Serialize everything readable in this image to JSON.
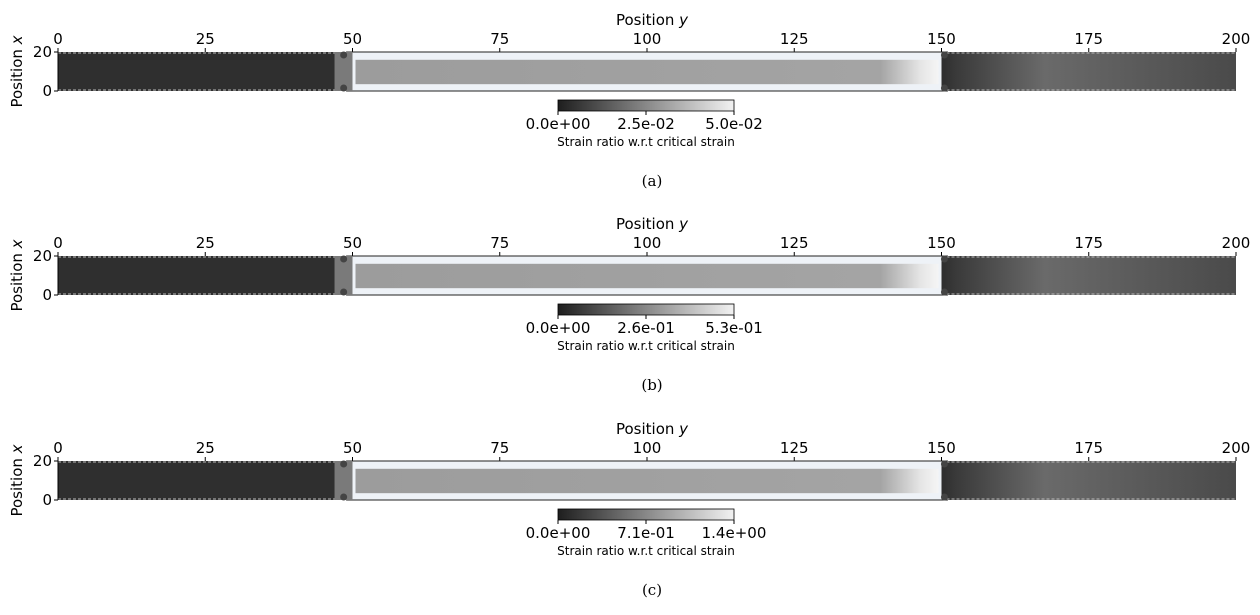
{
  "chart_data": [
    {
      "type": "heatmap",
      "xlabel": "Position y",
      "ylabel": "Position x",
      "xlim": [
        0,
        200
      ],
      "ylim": [
        0,
        20
      ],
      "xticks": [
        "0",
        "25",
        "50",
        "75",
        "100",
        "125",
        "150",
        "175",
        "200"
      ],
      "yticks": [
        "0",
        "20"
      ],
      "regions": [
        {
          "from": 0,
          "to": 47,
          "level": 0.02
        },
        {
          "from": 47,
          "to": 50,
          "level": 0.4
        },
        {
          "from": 50,
          "to": 150,
          "level": 0.65
        },
        {
          "from": 150,
          "to": 200,
          "level": 0.35
        }
      ],
      "colorbar": {
        "min": 0,
        "max": 0.05,
        "ticks": [
          "0.0e+00",
          "2.5e-02",
          "5.0e-02"
        ],
        "label": "Strain ratio w.r.t critical strain"
      },
      "caption": "(a)"
    },
    {
      "type": "heatmap",
      "xlabel": "Position y",
      "ylabel": "Position x",
      "xlim": [
        0,
        200
      ],
      "ylim": [
        0,
        20
      ],
      "xticks": [
        "0",
        "25",
        "50",
        "75",
        "100",
        "125",
        "150",
        "175",
        "200"
      ],
      "yticks": [
        "0",
        "20"
      ],
      "regions": [
        {
          "from": 0,
          "to": 47,
          "level": 0.02
        },
        {
          "from": 47,
          "to": 50,
          "level": 0.4
        },
        {
          "from": 50,
          "to": 150,
          "level": 0.65
        },
        {
          "from": 150,
          "to": 200,
          "level": 0.35
        }
      ],
      "colorbar": {
        "min": 0,
        "max": 0.53,
        "ticks": [
          "0.0e+00",
          "2.6e-01",
          "5.3e-01"
        ],
        "label": "Strain ratio w.r.t critical strain"
      },
      "caption": "(b)"
    },
    {
      "type": "heatmap",
      "xlabel": "Position y",
      "ylabel": "Position x",
      "xlim": [
        0,
        200
      ],
      "ylim": [
        0,
        20
      ],
      "xticks": [
        "0",
        "25",
        "50",
        "75",
        "100",
        "125",
        "150",
        "175",
        "200"
      ],
      "yticks": [
        "0",
        "20"
      ],
      "regions": [
        {
          "from": 0,
          "to": 47,
          "level": 0.02
        },
        {
          "from": 47,
          "to": 50,
          "level": 0.4
        },
        {
          "from": 50,
          "to": 150,
          "level": 0.65
        },
        {
          "from": 150,
          "to": 200,
          "level": 0.35
        }
      ],
      "colorbar": {
        "min": 0,
        "max": 1.4,
        "ticks": [
          "0.0e+00",
          "7.1e-01",
          "1.4e+00"
        ],
        "label": "Strain ratio w.r.t critical strain"
      },
      "caption": "(c)"
    }
  ]
}
